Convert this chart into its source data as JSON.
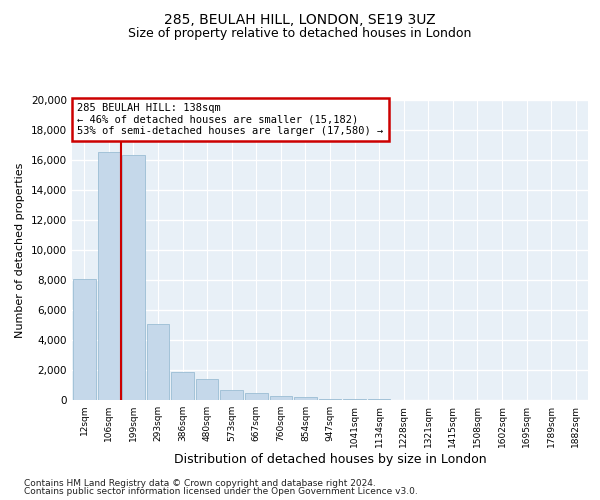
{
  "title1": "285, BEULAH HILL, LONDON, SE19 3UZ",
  "title2": "Size of property relative to detached houses in London",
  "xlabel": "Distribution of detached houses by size in London",
  "ylabel": "Number of detached properties",
  "annotation_line1": "285 BEULAH HILL: 138sqm",
  "annotation_line2": "← 46% of detached houses are smaller (15,182)",
  "annotation_line3": "53% of semi-detached houses are larger (17,580) →",
  "footnote1": "Contains HM Land Registry data © Crown copyright and database right 2024.",
  "footnote2": "Contains public sector information licensed under the Open Government Licence v3.0.",
  "bar_color": "#c5d8ea",
  "bar_edge_color": "#9bbdd4",
  "vline_color": "#cc0000",
  "annotation_box_color": "#cc0000",
  "background_color": "#e8f0f7",
  "grid_color": "#ffffff",
  "categories": [
    "12sqm",
    "106sqm",
    "199sqm",
    "293sqm",
    "386sqm",
    "480sqm",
    "573sqm",
    "667sqm",
    "760sqm",
    "854sqm",
    "947sqm",
    "1041sqm",
    "1134sqm",
    "1228sqm",
    "1321sqm",
    "1415sqm",
    "1508sqm",
    "1602sqm",
    "1695sqm",
    "1789sqm",
    "1882sqm"
  ],
  "values": [
    8100,
    16500,
    16300,
    5100,
    1850,
    1400,
    700,
    480,
    300,
    180,
    100,
    80,
    50,
    30,
    20,
    15,
    10,
    5,
    3,
    2,
    1
  ],
  "vline_x": 1.5,
  "ylim": [
    0,
    20000
  ],
  "yticks": [
    0,
    2000,
    4000,
    6000,
    8000,
    10000,
    12000,
    14000,
    16000,
    18000,
    20000
  ]
}
